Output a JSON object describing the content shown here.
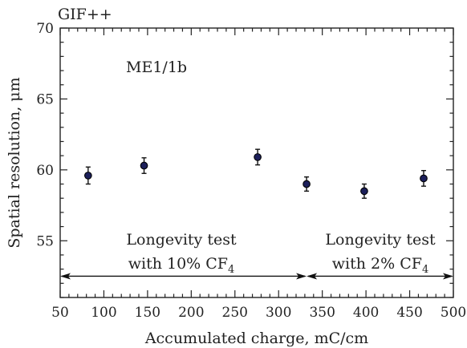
{
  "chart_data": {
    "type": "scatter",
    "title": "GIF++",
    "xlabel": "Accumulated charge, mC/cm",
    "ylabel": "Spatial resolution, μm",
    "xlim": [
      50,
      500
    ],
    "ylim": [
      51,
      70
    ],
    "xticks": [
      50,
      100,
      150,
      200,
      250,
      300,
      350,
      400,
      450,
      500
    ],
    "yticks": [
      55,
      60,
      65,
      70
    ],
    "grid": false,
    "series": [
      {
        "x": [
          82,
          146,
          276,
          332,
          398,
          466
        ],
        "y": [
          59.6,
          60.3,
          60.9,
          59.0,
          58.5,
          59.4
        ],
        "yerr": [
          0.6,
          0.55,
          0.55,
          0.5,
          0.5,
          0.55
        ],
        "color": "#1c1f5a"
      }
    ],
    "annotations": {
      "chamber": "ME1/1b",
      "period1_line1": "Longevity test",
      "period1_line2": "with 10% CF",
      "period1_sub": "4",
      "period2_line1": "Longevity test",
      "period2_line2": "with 2% CF",
      "period2_sub": "4"
    },
    "arrows": [
      {
        "from": 50,
        "to": 332,
        "y": 52.5
      },
      {
        "from": 332,
        "to": 500,
        "y": 52.5
      }
    ]
  }
}
